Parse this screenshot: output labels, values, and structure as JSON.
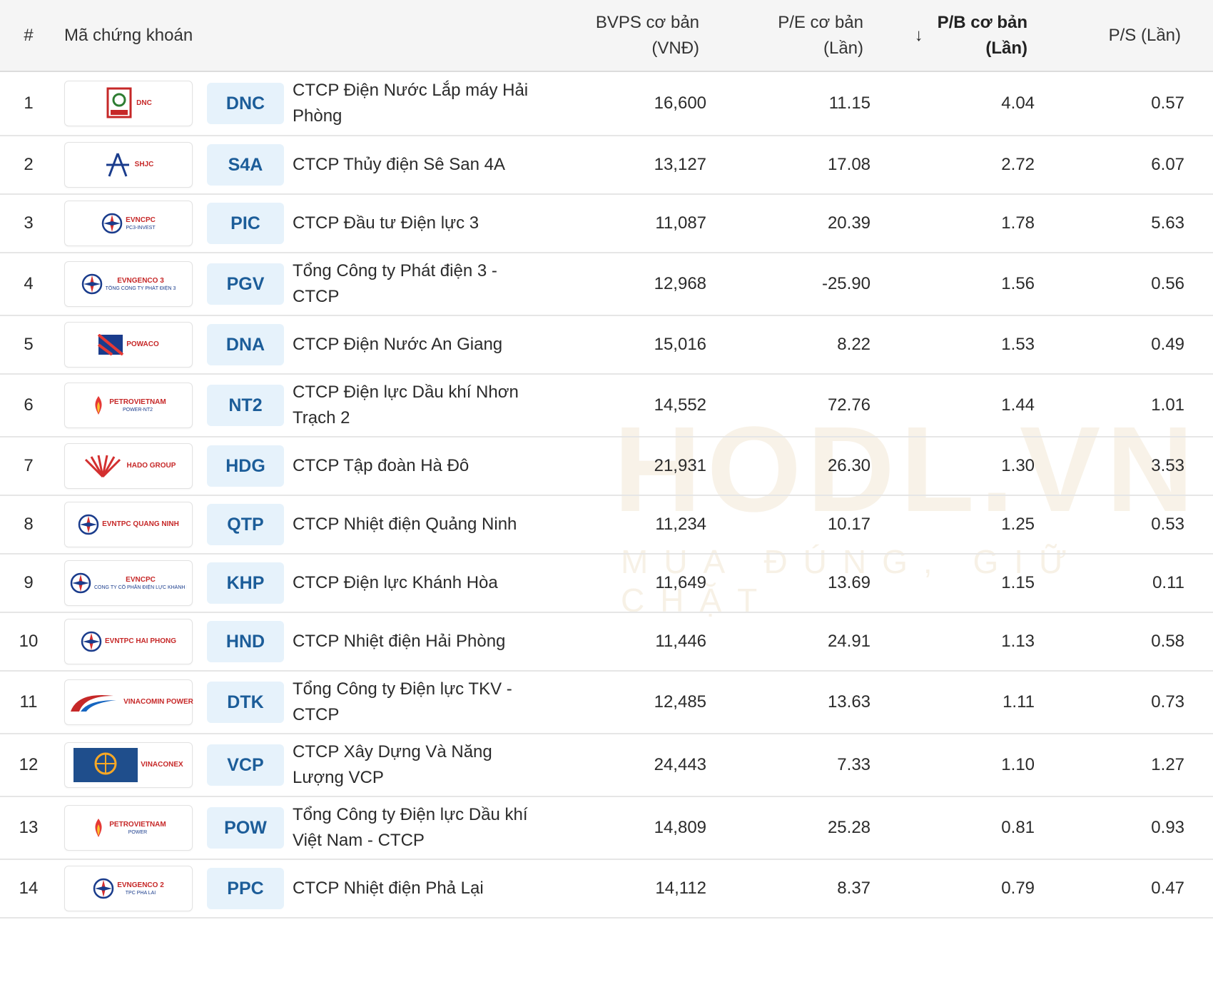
{
  "header": {
    "idx": "#",
    "code": "Mã chứng khoán",
    "bvps": [
      "BVPS cơ bản",
      "(VNĐ)"
    ],
    "pe": [
      "P/E cơ bản",
      "(Lần)"
    ],
    "pb": [
      "P/B cơ bản",
      "(Lần)"
    ],
    "ps": "P/S (Lần)",
    "sort_arrow": "↓"
  },
  "watermark": {
    "text": "HODL.VN",
    "sub": "MUA ĐÚNG, GIỮ CHẶT"
  },
  "accent_colors": {
    "ticker_bg": "#e6f2fb",
    "ticker_text": "#1c5d99",
    "header_bg": "#f5f5f5"
  },
  "rows": [
    {
      "idx": "1",
      "logo": "dnc-logo",
      "logo_text": "DNC",
      "ticker": "DNC",
      "name_lines": [
        "CTCP Điện Nước Lắp máy Hải",
        "Phòng"
      ],
      "bvps": "16,600",
      "pe": "11.15",
      "pb": "4.04",
      "ps": "0.57"
    },
    {
      "idx": "2",
      "logo": "shjc-logo",
      "logo_text": "SHJC",
      "ticker": "S4A",
      "name_lines": [
        "CTCP Thủy điện Sê San 4A"
      ],
      "bvps": "13,127",
      "pe": "17.08",
      "pb": "2.72",
      "ps": "6.07"
    },
    {
      "idx": "3",
      "logo": "evncpc-pc3-logo",
      "logo_text": "EVNCPC",
      "logo_sub": "PC3-INVEST",
      "ticker": "PIC",
      "name_lines": [
        "CTCP Đầu tư Điện lực 3"
      ],
      "bvps": "11,087",
      "pe": "20.39",
      "pb": "1.78",
      "ps": "5.63"
    },
    {
      "idx": "4",
      "logo": "evngenco3-logo",
      "logo_text": "EVNGENCO 3",
      "logo_sub": "TỔNG CÔNG TY PHÁT ĐIỆN 3",
      "ticker": "PGV",
      "name_lines": [
        "Tổng Công ty Phát điện 3 -",
        "CTCP"
      ],
      "bvps": "12,968",
      "pe": "-25.90",
      "pb": "1.56",
      "ps": "0.56"
    },
    {
      "idx": "5",
      "logo": "powaco-logo",
      "logo_text": "POWACO",
      "ticker": "DNA",
      "name_lines": [
        "CTCP Điện Nước An Giang"
      ],
      "bvps": "15,016",
      "pe": "8.22",
      "pb": "1.53",
      "ps": "0.49"
    },
    {
      "idx": "6",
      "logo": "petrovietnam-nt2-logo",
      "logo_text": "PETROVIETNAM",
      "logo_sub": "POWER-NT2",
      "ticker": "NT2",
      "name_lines": [
        "CTCP Điện lực Dầu khí Nhơn",
        "Trạch 2"
      ],
      "bvps": "14,552",
      "pe": "72.76",
      "pb": "1.44",
      "ps": "1.01"
    },
    {
      "idx": "7",
      "logo": "hado-logo",
      "logo_text": "HADO GROUP",
      "ticker": "HDG",
      "name_lines": [
        "CTCP Tập đoàn Hà Đô"
      ],
      "bvps": "21,931",
      "pe": "26.30",
      "pb": "1.30",
      "ps": "3.53"
    },
    {
      "idx": "8",
      "logo": "evntpc-quangninh-logo",
      "logo_text": "EVNTPC QUANG NINH",
      "ticker": "QTP",
      "name_lines": [
        "CTCP Nhiệt điện Quảng Ninh"
      ],
      "bvps": "11,234",
      "pe": "10.17",
      "pb": "1.25",
      "ps": "0.53"
    },
    {
      "idx": "9",
      "logo": "evncpc-khanhhoa-logo",
      "logo_text": "EVNCPC",
      "logo_sub": "CÔNG TY CỔ PHẦN ĐIỆN LỰC KHÁNH HÒA",
      "ticker": "KHP",
      "name_lines": [
        "CTCP Điện lực Khánh Hòa"
      ],
      "bvps": "11,649",
      "pe": "13.69",
      "pb": "1.15",
      "ps": "0.11"
    },
    {
      "idx": "10",
      "logo": "evntpc-haiphong-logo",
      "logo_text": "EVNTPC HAI PHONG",
      "ticker": "HND",
      "name_lines": [
        "CTCP Nhiệt điện Hải Phòng"
      ],
      "bvps": "11,446",
      "pe": "24.91",
      "pb": "1.13",
      "ps": "0.58"
    },
    {
      "idx": "11",
      "logo": "vinacomin-power-logo",
      "logo_text": "VINACOMIN POWER",
      "ticker": "DTK",
      "name_lines": [
        "Tổng Công ty Điện lực TKV -",
        "CTCP"
      ],
      "bvps": "12,485",
      "pe": "13.63",
      "pb": "1.11",
      "ps": "0.73"
    },
    {
      "idx": "12",
      "logo": "vinaconex-logo",
      "logo_text": "VINACONEX",
      "ticker": "VCP",
      "name_lines": [
        "CTCP Xây Dựng Và Năng",
        "Lượng VCP"
      ],
      "bvps": "24,443",
      "pe": "7.33",
      "pb": "1.10",
      "ps": "1.27"
    },
    {
      "idx": "13",
      "logo": "petrovietnam-power-logo",
      "logo_text": "PETROVIETNAM",
      "logo_sub": "POWER",
      "ticker": "POW",
      "name_lines": [
        "Tổng Công ty Điện lực Dầu khí",
        "Việt Nam - CTCP"
      ],
      "bvps": "14,809",
      "pe": "25.28",
      "pb": "0.81",
      "ps": "0.93"
    },
    {
      "idx": "14",
      "logo": "evngenco2-logo",
      "logo_text": "EVNGENCO 2",
      "logo_sub": "TPC PHA LAI",
      "ticker": "PPC",
      "name_lines": [
        "CTCP Nhiệt điện Phả Lại"
      ],
      "bvps": "14,112",
      "pe": "8.37",
      "pb": "0.79",
      "ps": "0.47"
    }
  ]
}
